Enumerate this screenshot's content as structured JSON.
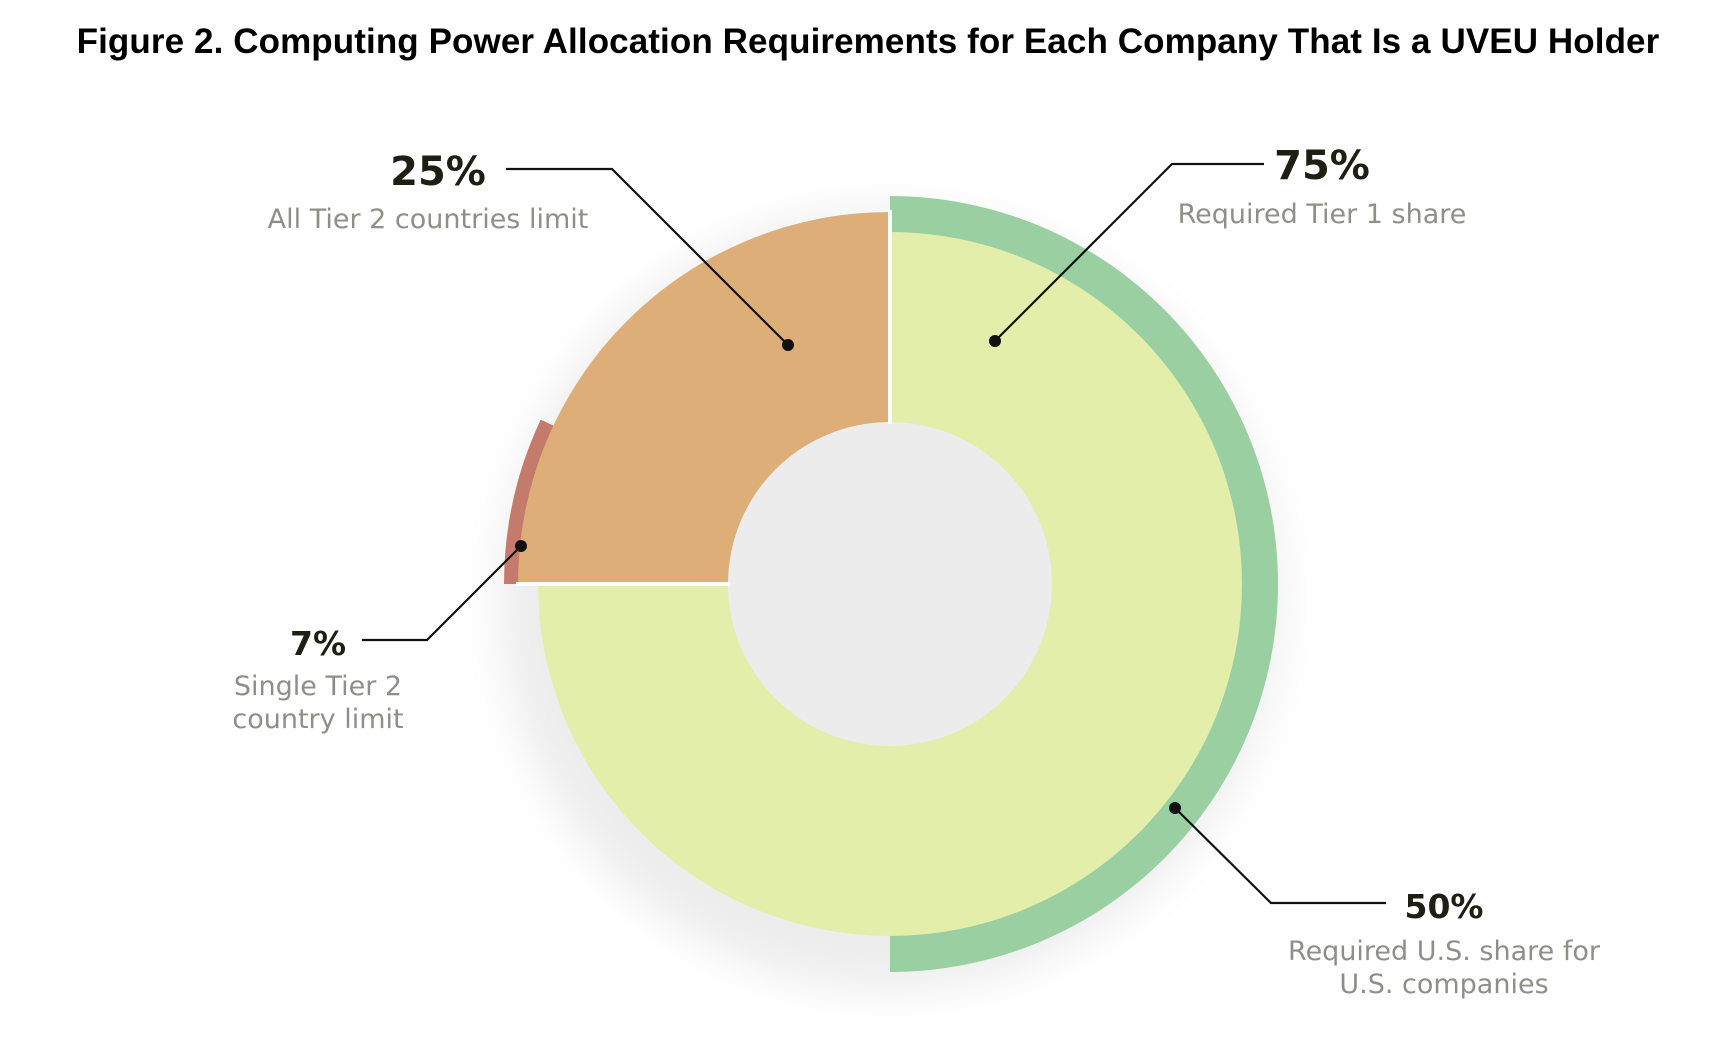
{
  "figure_title": "Figure 2. Computing Power Allocation Requirements for Each Company That Is a UVEU Holder",
  "chart_data": {
    "type": "pie",
    "title": "Figure 2. Computing Power Allocation Requirements for Each Company That Is a UVEU Holder",
    "inner_ring": [
      {
        "key": "tier1",
        "value": 75,
        "color": "#e3eeab"
      },
      {
        "key": "tier2",
        "value": 25,
        "color": "#ddae78"
      }
    ],
    "outer_ring": [
      {
        "key": "us",
        "value": 50,
        "color": "#9acfa2"
      },
      {
        "key": "single_tier2",
        "value": 7,
        "color": "#c47b6b"
      }
    ],
    "annotations": [
      {
        "key": "tier2",
        "value_label": "25%",
        "description": [
          "All Tier 2 countries limit"
        ]
      },
      {
        "key": "tier1",
        "value_label": "75%",
        "description": [
          "Required Tier 1 share"
        ]
      },
      {
        "key": "single_tier2",
        "value_label": "7%",
        "description": [
          "Single Tier 2",
          "country limit"
        ]
      },
      {
        "key": "us",
        "value_label": "50%",
        "description": [
          "Required U.S. share for",
          "U.S. companies"
        ]
      }
    ],
    "start_angle": "12 o'clock",
    "direction": "clockwise"
  }
}
